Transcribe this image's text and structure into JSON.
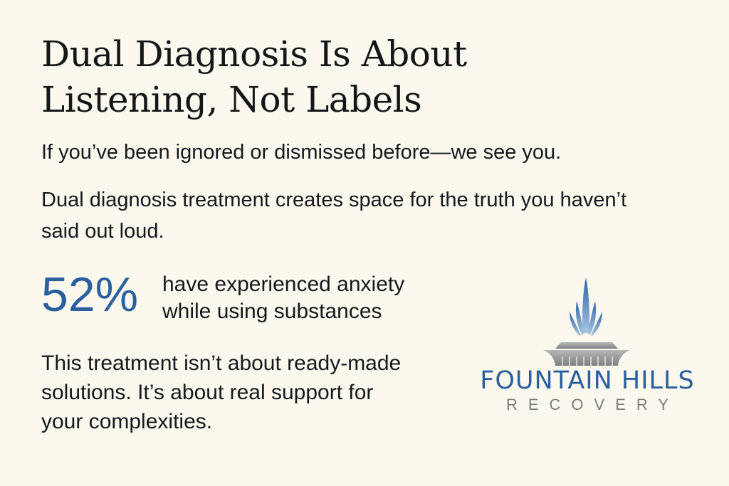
{
  "title": {
    "line1": "Dual Diagnosis Is About",
    "line2": "Listening, Not Labels"
  },
  "subtitle": "If you’ve been ignored or dismissed before—we see you.",
  "paragraph": "Dual diagnosis treatment creates space for the truth you haven’t said out loud.",
  "stat": {
    "value": "52%",
    "line1": "have experienced anxiety",
    "line2": "while using substances"
  },
  "closing": {
    "line1": "This treatment isn’t about ready-made",
    "line2": "solutions. It’s about real support for",
    "line3": "your complexities."
  },
  "logo": {
    "name": "FOUNTAIN HILLS",
    "tagline": "RECOVERY",
    "icon": "fountain-icon"
  },
  "colors": {
    "background": "#fbf8ee",
    "accent": "#2b5f9e",
    "text": "#15181c",
    "gray": "#7b7d7d"
  }
}
